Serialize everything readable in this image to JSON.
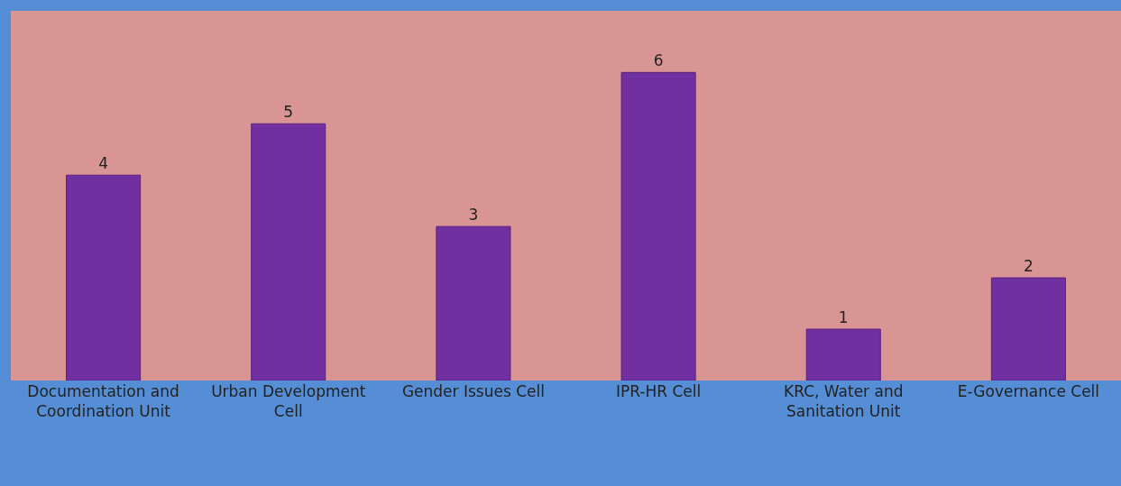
{
  "chart_data": {
    "type": "bar",
    "categories": [
      "Documentation and Coordination Unit",
      "Urban Development Cell",
      "Gender Issues Cell",
      "IPR-HR Cell",
      "KRC, Water and Sanitation Unit",
      "E-Governance Cell"
    ],
    "values": [
      4,
      5,
      3,
      6,
      1,
      2
    ],
    "color": "#7030a0",
    "data_labels": true,
    "grid": false,
    "legend": false
  }
}
